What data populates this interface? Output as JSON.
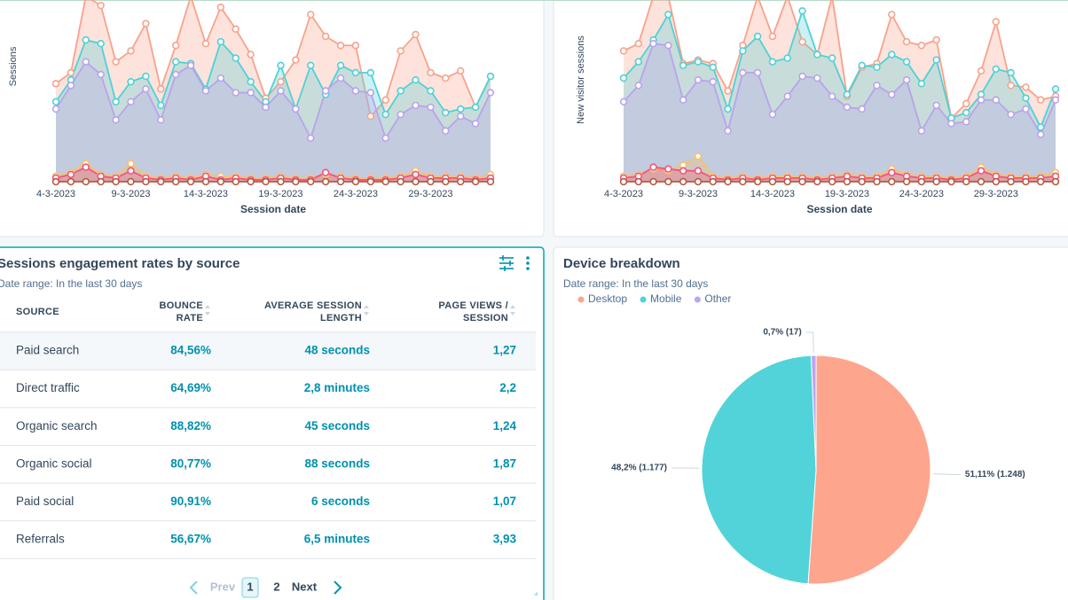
{
  "chart_data": [
    {
      "type": "area",
      "y_label": "Sessions",
      "x_label": "Session date",
      "categories": [
        "4-3-2023",
        null,
        null,
        null,
        null,
        "9-3-2023",
        null,
        null,
        null,
        null,
        "14-3-2023",
        null,
        null,
        null,
        null,
        "19-3-2023",
        null,
        null,
        null,
        null,
        "24-3-2023",
        null,
        null,
        null,
        null,
        "29-3-2023",
        null,
        null,
        null,
        null
      ],
      "ylim": [
        0,
        100
      ],
      "series": [
        {
          "color": "#f8a28c",
          "values": [
            54,
            60,
            102,
            97,
            66,
            72,
            87,
            51,
            75,
            102,
            76,
            96,
            84,
            70,
            46,
            55,
            67,
            92,
            80,
            75,
            75,
            36,
            45,
            72,
            81,
            60,
            57,
            61,
            41,
            58
          ]
        },
        {
          "color": "#4fd1d6",
          "values": [
            44,
            56,
            78,
            76,
            44,
            55,
            58,
            42,
            66,
            65,
            51,
            77,
            68,
            55,
            44,
            64,
            40,
            64,
            48,
            64,
            60,
            60,
            37,
            50,
            56,
            50,
            38,
            40,
            41,
            58
          ]
        },
        {
          "color": "#b9a3ec",
          "values": [
            40,
            53,
            66,
            59,
            34,
            44,
            51,
            34,
            59,
            64,
            50,
            57,
            49,
            49,
            41,
            50,
            40,
            24,
            50,
            57,
            50,
            49,
            24,
            37,
            42,
            41,
            28,
            36,
            32,
            49
          ]
        },
        {
          "color": "#f5c26b",
          "values": [
            3,
            5,
            10,
            4,
            3,
            10,
            3,
            2,
            3,
            2,
            4,
            3,
            3,
            2,
            2,
            3,
            2,
            2,
            4,
            3,
            2,
            2,
            2,
            3,
            6,
            3,
            3,
            3,
            2,
            4
          ]
        },
        {
          "color": "#f2547d",
          "values": [
            2,
            4,
            8,
            3,
            2,
            6,
            2,
            1,
            2,
            1,
            3,
            1,
            2,
            1,
            1,
            2,
            1,
            1,
            5,
            2,
            1,
            1,
            1,
            2,
            4,
            2,
            2,
            2,
            1,
            2
          ]
        },
        {
          "color": "#b55a43",
          "values": [
            0,
            0,
            0,
            0,
            0,
            0,
            0,
            0,
            0,
            0,
            0,
            0,
            0,
            0,
            0,
            0,
            0,
            0,
            0,
            0,
            0,
            0,
            0,
            0,
            0,
            0,
            0,
            0,
            0,
            0
          ]
        }
      ]
    },
    {
      "type": "area",
      "y_label": "New visitor sessions",
      "x_label": "Session date",
      "categories": [
        "4-3-2023",
        null,
        null,
        null,
        null,
        "9-3-2023",
        null,
        null,
        null,
        null,
        "14-3-2023",
        null,
        null,
        null,
        null,
        "19-3-2023",
        null,
        null,
        null,
        null,
        "24-3-2023",
        null,
        null,
        null,
        null,
        "29-3-2023",
        null,
        null,
        null,
        null
      ],
      "ylim": [
        0,
        100
      ],
      "series": [
        {
          "color": "#f8a28c",
          "values": [
            72,
            76,
            102,
            102,
            65,
            67,
            65,
            50,
            75,
            102,
            80,
            102,
            77,
            70,
            102,
            47,
            63,
            65,
            92,
            77,
            75,
            78,
            35,
            43,
            61,
            88,
            53,
            52,
            45,
            47
          ]
        },
        {
          "color": "#4fd1d6",
          "values": [
            57,
            66,
            78,
            92,
            64,
            66,
            63,
            40,
            72,
            80,
            66,
            68,
            94,
            70,
            68,
            48,
            64,
            63,
            70,
            66,
            54,
            67,
            35,
            38,
            48,
            62,
            60,
            46,
            30,
            51
          ]
        },
        {
          "color": "#b9a3ec",
          "values": [
            44,
            53,
            76,
            75,
            45,
            56,
            55,
            28,
            60,
            60,
            37,
            47,
            58,
            57,
            47,
            41,
            40,
            53,
            48,
            56,
            28,
            42,
            32,
            33,
            45,
            45,
            37,
            40,
            26,
            45
          ]
        },
        {
          "color": "#f5c26b",
          "values": [
            3,
            4,
            7,
            6,
            9,
            14,
            3,
            2,
            3,
            2,
            3,
            3,
            3,
            2,
            3,
            4,
            3,
            3,
            7,
            4,
            3,
            3,
            2,
            3,
            8,
            4,
            3,
            3,
            3,
            5
          ]
        },
        {
          "color": "#f2547d",
          "values": [
            2,
            3,
            8,
            7,
            6,
            6,
            2,
            1,
            2,
            1,
            2,
            2,
            2,
            1,
            2,
            3,
            2,
            2,
            5,
            3,
            2,
            2,
            1,
            2,
            6,
            3,
            2,
            2,
            2,
            3
          ]
        },
        {
          "color": "#b55a43",
          "values": [
            0,
            0,
            0,
            0,
            0,
            0,
            0,
            0,
            0,
            0,
            0,
            0,
            0,
            0,
            0,
            0,
            0,
            0,
            0,
            0,
            0,
            0,
            0,
            0,
            0,
            0,
            0,
            0,
            0,
            0
          ]
        }
      ]
    },
    {
      "type": "pie",
      "title": "Device breakdown",
      "subtitle": "Date range: In the last 30 days",
      "categories": [
        "Desktop",
        "Mobile",
        "Other"
      ],
      "values": [
        51.11,
        48.2,
        0.7
      ],
      "value_labels": [
        "51,11% (1.248)",
        "48,2% (1.177)",
        "0,7% (17)"
      ],
      "colors": [
        "#fea58e",
        "#51d3d9",
        "#b9a6f0"
      ]
    }
  ],
  "table": {
    "title": "Sessions engagement rates by source",
    "subtitle": "Date range: In the last 30 days",
    "headers": [
      [
        "SOURCE"
      ],
      [
        "BOUNCE",
        "RATE"
      ],
      [
        "AVERAGE SESSION",
        "LENGTH"
      ],
      [
        "PAGE VIEWS /",
        "SESSION"
      ]
    ],
    "rows": [
      [
        "Paid search",
        "84,56%",
        "48 seconds",
        "1,27"
      ],
      [
        "Direct traffic",
        "64,69%",
        "2,8 minutes",
        "2,2"
      ],
      [
        "Organic search",
        "88,82%",
        "45 seconds",
        "1,24"
      ],
      [
        "Organic social",
        "80,77%",
        "88 seconds",
        "1,87"
      ],
      [
        "Paid social",
        "90,91%",
        "6 seconds",
        "1,07"
      ],
      [
        "Referrals",
        "56,67%",
        "6,5 minutes",
        "3,93"
      ]
    ]
  },
  "pagination": {
    "prev": "Prev",
    "pages": [
      "1",
      "2"
    ],
    "next": "Next"
  }
}
